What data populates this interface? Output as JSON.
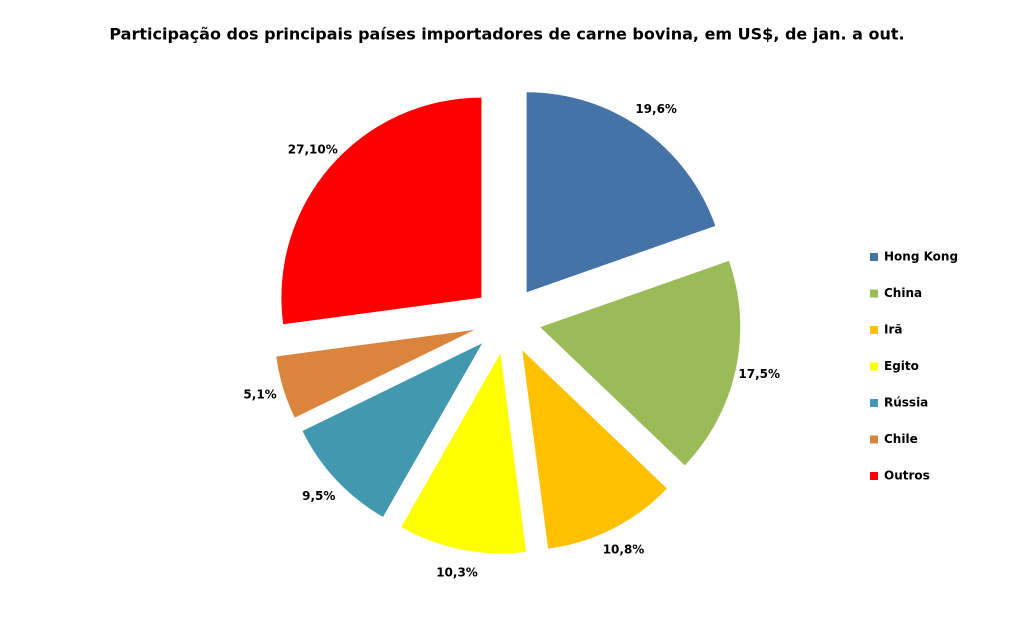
{
  "chart_data": {
    "type": "pie",
    "title": "Participação dos principais países importadores de carne bovina, em US$, de jan. a out.",
    "categories": [
      "Hong Kong",
      "China",
      "Irã",
      "Egito",
      "Rússia",
      "Chile",
      "Outros"
    ],
    "values": [
      19.6,
      17.5,
      10.8,
      10.3,
      9.5,
      5.1,
      27.1
    ],
    "value_labels": [
      "19,6%",
      "17,5%",
      "10,8%",
      "10,3%",
      "9,5%",
      "5,1%",
      "27,10%"
    ],
    "colors": [
      "#4572a7",
      "#9bbb59",
      "#ffc000",
      "#ffff00",
      "#4198af",
      "#db843d",
      "#ff0000"
    ],
    "legend": "right"
  }
}
